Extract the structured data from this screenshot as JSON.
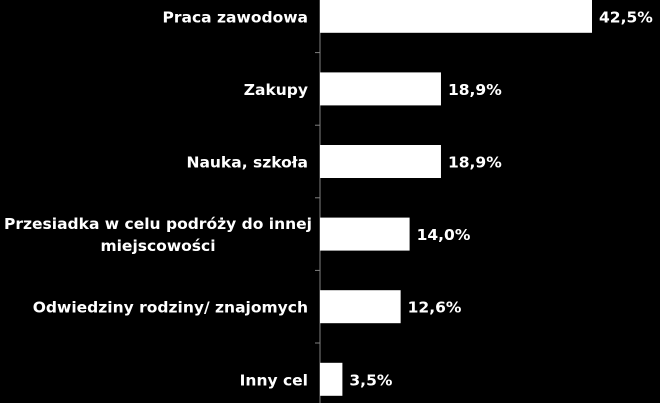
{
  "chart_data": {
    "type": "bar",
    "orientation": "horizontal",
    "title": "",
    "xlabel": "",
    "ylabel": "",
    "categories": [
      [
        "Praca zawodowa"
      ],
      [
        "Zakupy"
      ],
      [
        "Nauka, szkoła"
      ],
      [
        "Przesiadka w celu podróży do innej",
        "miejscowości"
      ],
      [
        "Odwiedziny rodziny/  znajomych"
      ],
      [
        "Inny cel"
      ]
    ],
    "values": [
      42.5,
      18.9,
      18.9,
      14.0,
      12.6,
      3.5
    ],
    "value_labels": [
      "42,5%",
      "18,9%",
      "18,9%",
      "14,0%",
      "12,6%",
      "3,5%"
    ],
    "xlim": [
      0,
      42.5
    ],
    "grid": false,
    "legend": "none",
    "colors": {
      "background": "#000000",
      "bar": "#ffffff",
      "text": "#ffffff",
      "axis": "#808080"
    }
  }
}
